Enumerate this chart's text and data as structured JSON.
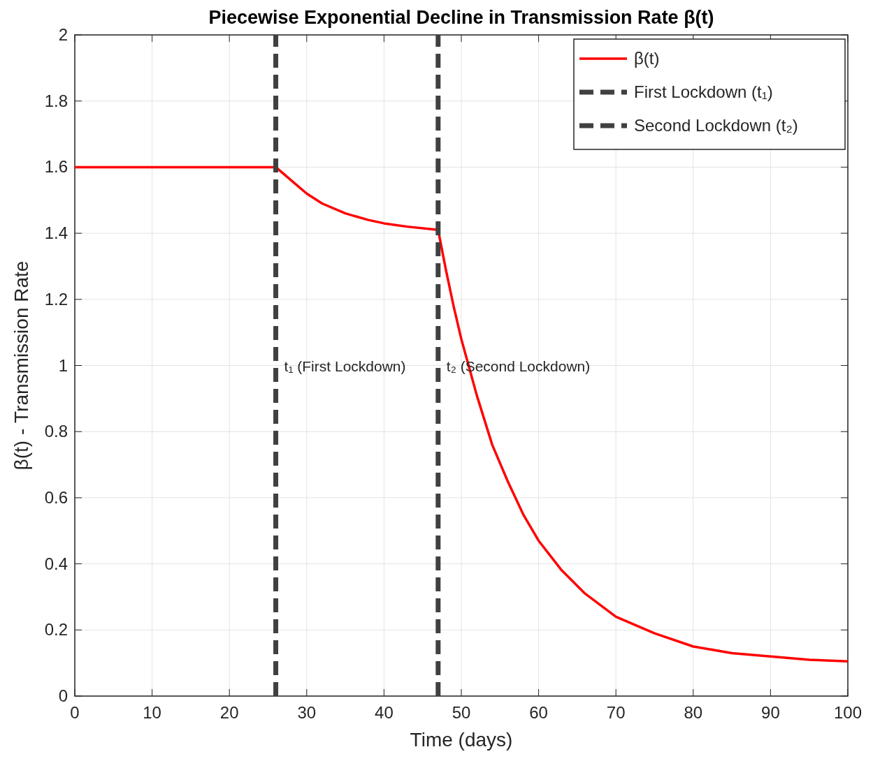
{
  "chart_data": {
    "type": "line",
    "title": "Piecewise Exponential Decline in Transmission Rate β(t)",
    "xlabel": "Time (days)",
    "ylabel": "β(t) - Transmission Rate",
    "xlim": [
      0,
      100
    ],
    "xticks": [
      0,
      10,
      20,
      30,
      40,
      50,
      60,
      70,
      80,
      90,
      100
    ],
    "ylim": [
      0,
      2
    ],
    "yticks": [
      0,
      0.2,
      0.4,
      0.6,
      0.8,
      1,
      1.2,
      1.4,
      1.6,
      1.8,
      2
    ],
    "grid": true,
    "legend": "top right",
    "series": [
      {
        "name": "β(t)",
        "color": "#ff0000",
        "line_style": "solid",
        "x": [
          0,
          10,
          20,
          26,
          27,
          28,
          30,
          32,
          35,
          38,
          40,
          43,
          47,
          48,
          49,
          50,
          52,
          54,
          56,
          58,
          60,
          63,
          66,
          70,
          75,
          80,
          85,
          90,
          95,
          100
        ],
        "values": [
          1.6,
          1.6,
          1.6,
          1.6,
          1.58,
          1.56,
          1.52,
          1.49,
          1.46,
          1.44,
          1.43,
          1.42,
          1.41,
          1.29,
          1.18,
          1.08,
          0.91,
          0.76,
          0.65,
          0.55,
          0.47,
          0.38,
          0.31,
          0.24,
          0.19,
          0.15,
          0.13,
          0.12,
          0.11,
          0.105
        ]
      },
      {
        "name": "First Lockdown (t₁)",
        "color": "#404040",
        "line_style": "dashed",
        "x": [
          26,
          26
        ],
        "values": [
          0,
          2
        ]
      },
      {
        "name": "Second Lockdown (t₂)",
        "color": "#404040",
        "line_style": "dashed",
        "x": [
          47,
          47
        ],
        "values": [
          0,
          2
        ]
      }
    ],
    "annotations": [
      {
        "text": "t₁ (First Lockdown)",
        "x": 26,
        "y": 1
      },
      {
        "text": "t₂ (Second Lockdown)",
        "x": 47,
        "y": 1
      }
    ]
  }
}
